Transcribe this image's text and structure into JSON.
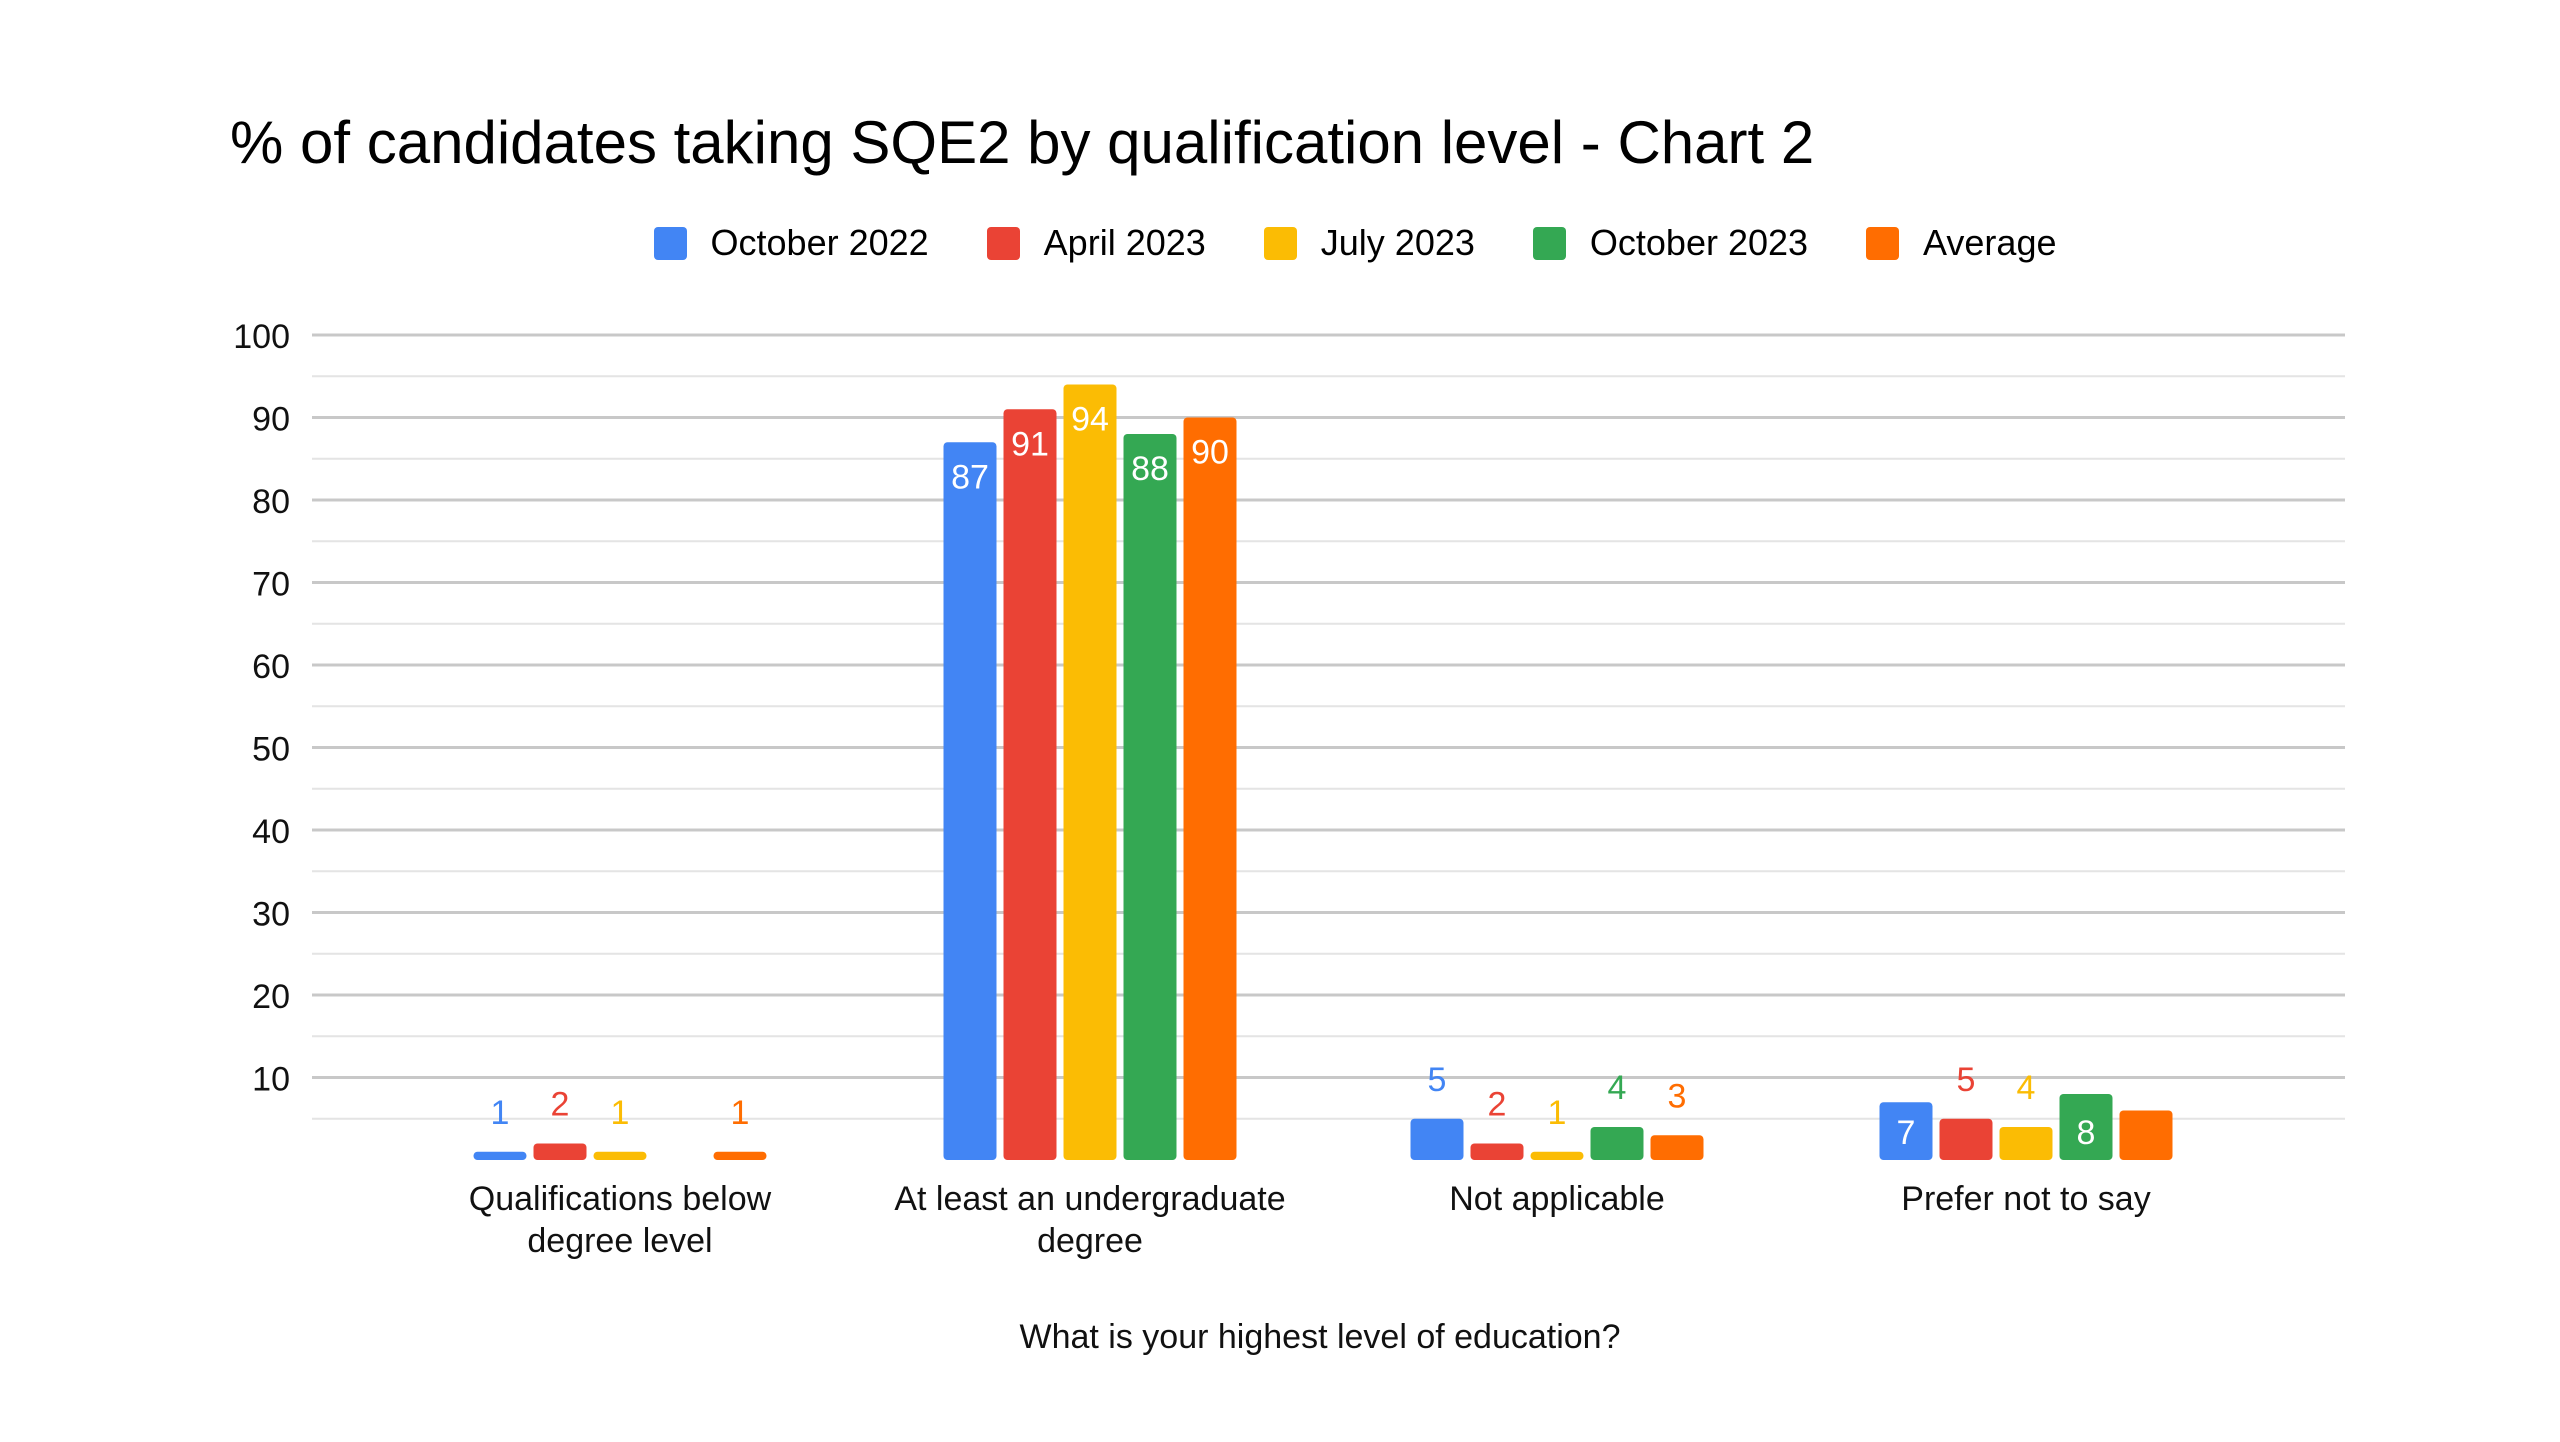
{
  "chart_data": {
    "type": "bar",
    "title": "% of candidates taking SQE2 by qualification level - Chart 2",
    "xlabel": "What is your highest level of education?",
    "ylabel": "",
    "ylim": [
      0,
      100
    ],
    "yticks": [
      10,
      20,
      30,
      40,
      50,
      60,
      70,
      80,
      90,
      100
    ],
    "grid": true,
    "legend_position": "top",
    "categories": [
      [
        "Qualifications below",
        "degree level"
      ],
      [
        "At least an undergraduate",
        "degree"
      ],
      [
        "Not applicable"
      ],
      [
        "Prefer not to say"
      ]
    ],
    "series": [
      {
        "name": "October 2022",
        "color": "#4285F4",
        "values": [
          1,
          87,
          5,
          7
        ]
      },
      {
        "name": "April 2023",
        "color": "#EA4335",
        "values": [
          2,
          91,
          2,
          5
        ]
      },
      {
        "name": "July 2023",
        "color": "#FBBC04",
        "values": [
          1,
          94,
          1,
          4
        ]
      },
      {
        "name": "October 2023",
        "color": "#34A853",
        "values": [
          0,
          88,
          4,
          8
        ]
      },
      {
        "name": "Average",
        "color": "#FF6D01",
        "values": [
          1,
          90,
          3,
          6
        ]
      }
    ],
    "data_labels": [
      [
        "1",
        "87",
        "5",
        "7"
      ],
      [
        "2",
        "91",
        "2",
        "5"
      ],
      [
        "1",
        "94",
        "1",
        "4"
      ],
      [
        "",
        "88",
        "4",
        "8"
      ],
      [
        "1",
        "90",
        "3",
        ""
      ]
    ]
  }
}
